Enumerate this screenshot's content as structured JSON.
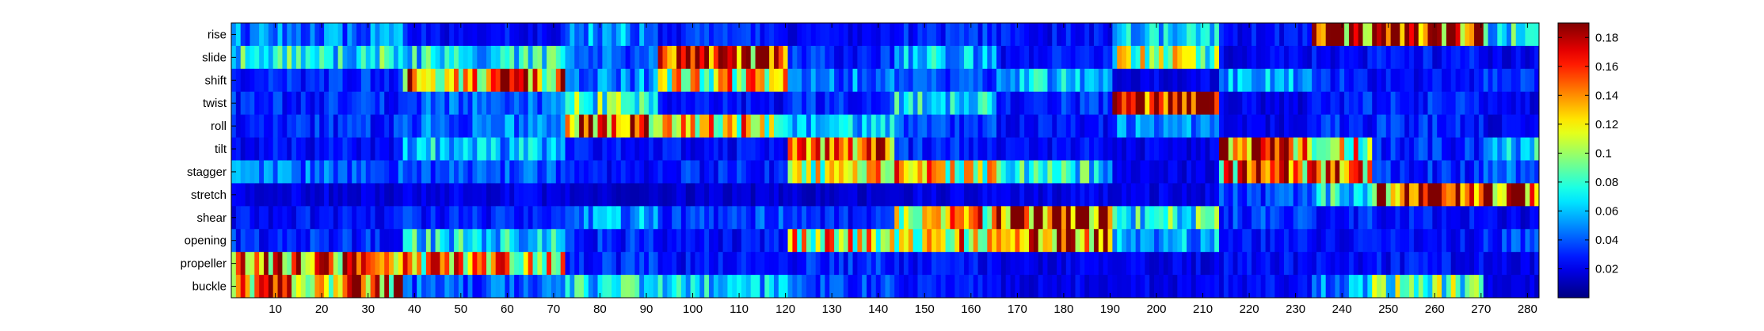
{
  "chart_data": {
    "type": "heatmap",
    "rows": [
      "rise",
      "slide",
      "shift",
      "twist",
      "roll",
      "tilt",
      "stagger",
      "stretch",
      "shear",
      "opening",
      "propeller",
      "buckle"
    ],
    "x_range": [
      1,
      282
    ],
    "x_ticks": [
      10,
      20,
      30,
      40,
      50,
      60,
      70,
      80,
      90,
      100,
      110,
      120,
      130,
      140,
      150,
      160,
      170,
      180,
      190,
      200,
      210,
      220,
      230,
      240,
      250,
      260,
      270,
      280
    ],
    "colormap": "jet",
    "clim": [
      0,
      0.19
    ],
    "colorbar_ticks": [
      0.02,
      0.04,
      0.06,
      0.08,
      0.1,
      0.12,
      0.14,
      0.16,
      0.18
    ],
    "colorbar_tick_labels": [
      "0.02",
      "0.04",
      "0.06",
      "0.08",
      "0.1",
      "0.12",
      "0.14",
      "0.16",
      "0.18"
    ],
    "segments_note_free": true,
    "segments": [
      {
        "from": 1,
        "to": 37,
        "values": [
          0.045,
          0.075,
          0.03,
          0.03,
          0.03,
          0.025,
          0.045,
          0.018,
          0.025,
          0.03,
          0.14,
          0.14
        ]
      },
      {
        "from": 38,
        "to": 72,
        "values": [
          0.025,
          0.07,
          0.14,
          0.04,
          0.045,
          0.06,
          0.04,
          0.02,
          0.03,
          0.07,
          0.13,
          0.04
        ]
      },
      {
        "from": 73,
        "to": 92,
        "values": [
          0.05,
          0.04,
          0.05,
          0.08,
          0.16,
          0.025,
          0.025,
          0.015,
          0.05,
          0.03,
          0.03,
          0.07
        ]
      },
      {
        "from": 93,
        "to": 120,
        "values": [
          0.03,
          0.155,
          0.12,
          0.025,
          0.12,
          0.025,
          0.03,
          0.015,
          0.035,
          0.025,
          0.025,
          0.06
        ]
      },
      {
        "from": 121,
        "to": 143,
        "values": [
          0.02,
          0.03,
          0.045,
          0.03,
          0.06,
          0.15,
          0.12,
          0.015,
          0.03,
          0.12,
          0.03,
          0.035
        ]
      },
      {
        "from": 144,
        "to": 165,
        "values": [
          0.03,
          0.06,
          0.035,
          0.07,
          0.035,
          0.03,
          0.12,
          0.02,
          0.13,
          0.13,
          0.025,
          0.025
        ]
      },
      {
        "from": 166,
        "to": 190,
        "values": [
          0.025,
          0.025,
          0.06,
          0.03,
          0.025,
          0.025,
          0.07,
          0.02,
          0.175,
          0.155,
          0.02,
          0.02
        ]
      },
      {
        "from": 191,
        "to": 213,
        "values": [
          0.06,
          0.1,
          0.02,
          0.175,
          0.045,
          0.02,
          0.02,
          0.02,
          0.08,
          0.055,
          0.02,
          0.02
        ]
      },
      {
        "from": 214,
        "to": 233,
        "values": [
          0.025,
          0.02,
          0.055,
          0.02,
          0.02,
          0.165,
          0.14,
          0.035,
          0.035,
          0.025,
          0.025,
          0.025
        ]
      },
      {
        "from": 234,
        "to": 246,
        "values": [
          0.17,
          0.025,
          0.03,
          0.03,
          0.03,
          0.12,
          0.13,
          0.07,
          0.03,
          0.025,
          0.025,
          0.05
        ]
      },
      {
        "from": 247,
        "to": 270,
        "values": [
          0.18,
          0.025,
          0.025,
          0.03,
          0.03,
          0.03,
          0.03,
          0.17,
          0.025,
          0.025,
          0.025,
          0.09
        ]
      },
      {
        "from": 271,
        "to": 282,
        "values": [
          0.07,
          0.02,
          0.03,
          0.02,
          0.02,
          0.065,
          0.04,
          0.18,
          0.02,
          0.035,
          0.02,
          0.02
        ]
      }
    ]
  }
}
